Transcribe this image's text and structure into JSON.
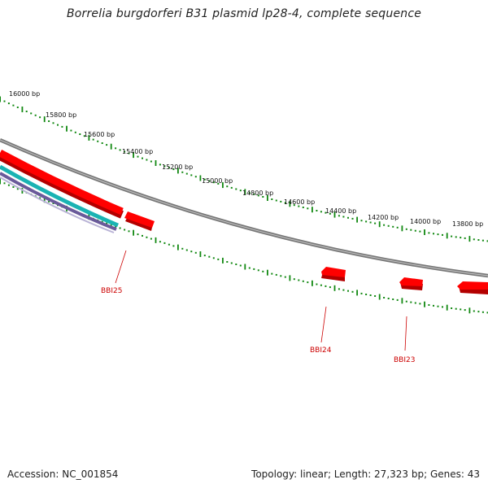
{
  "title": "Borrelia burgdorferi B31 plasmid lp28-4, complete sequence",
  "scale": {
    "labels": [
      "16000 bp",
      "15800 bp",
      "15600 bp",
      "15400 bp",
      "15200 bp",
      "15000 bp",
      "14800 bp",
      "14600 bp",
      "14400 bp",
      "14200 bp",
      "14000 bp",
      "13800 bp"
    ]
  },
  "genes": [
    {
      "label": "BBI25"
    },
    {
      "label": "BBI24"
    },
    {
      "label": "BBI23"
    }
  ],
  "colors": {
    "gene": "#ff0000",
    "gene_shadow": "#b30000",
    "backbone": "#8a8a8a",
    "scale_ticks": "#118811",
    "label": "#cc0000",
    "cyan_track": "#1ab3b3",
    "purple_track": "#6a5a9a"
  },
  "footer": {
    "accession": "Accession: NC_001854",
    "summary": "Topology: linear; Length: 27,323 bp; Genes: 43"
  }
}
